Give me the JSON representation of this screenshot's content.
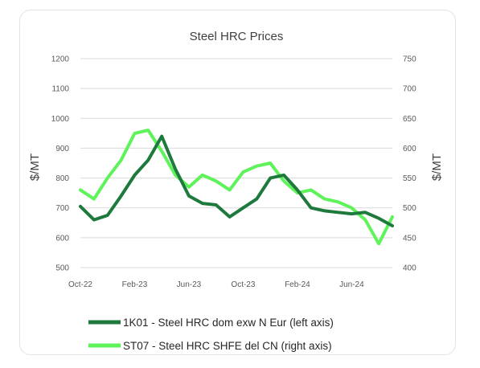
{
  "chart_data": {
    "type": "line",
    "title": "Steel HRC Prices",
    "ylabel_left": "$/MT",
    "ylabel_right": "$/MT",
    "ylim_left": [
      500,
      1200
    ],
    "ylim_right": [
      400,
      750
    ],
    "yticks_left": [
      "1200",
      "1100",
      "1000",
      "900",
      "800",
      "700",
      "600",
      "500"
    ],
    "yticks_right": [
      "750",
      "700",
      "650",
      "600",
      "550",
      "500",
      "450",
      "400"
    ],
    "xticks": [
      "Oct-22",
      "Feb-23",
      "Jun-23",
      "Oct-23",
      "Feb-24",
      "Jun-24"
    ],
    "x": [
      "2022-10",
      "2022-11",
      "2022-12",
      "2023-01",
      "2023-02",
      "2023-03",
      "2023-04",
      "2023-05",
      "2023-06",
      "2023-07",
      "2023-08",
      "2023-09",
      "2023-10",
      "2023-11",
      "2023-12",
      "2024-01",
      "2024-02",
      "2024-03",
      "2024-04",
      "2024-05",
      "2024-06",
      "2024-07",
      "2024-08",
      "2024-09"
    ],
    "grid": true,
    "legend_position": "bottom",
    "series": [
      {
        "name": "1K01 - Steel HRC dom exw N Eur (left axis)",
        "axis": "left",
        "color": "#1e7a3c",
        "values": [
          705,
          660,
          675,
          740,
          810,
          860,
          940,
          830,
          740,
          715,
          710,
          670,
          700,
          730,
          800,
          810,
          760,
          700,
          690,
          685,
          680,
          685,
          665,
          640
        ]
      },
      {
        "name": "ST07 - Steel HRC SHFE del CN (right axis)",
        "axis": "right",
        "color": "#5ef35a",
        "values": [
          530,
          515,
          550,
          580,
          625,
          630,
          595,
          555,
          535,
          555,
          545,
          530,
          560,
          570,
          575,
          545,
          525,
          530,
          515,
          510,
          500,
          480,
          440,
          485
        ]
      }
    ]
  }
}
